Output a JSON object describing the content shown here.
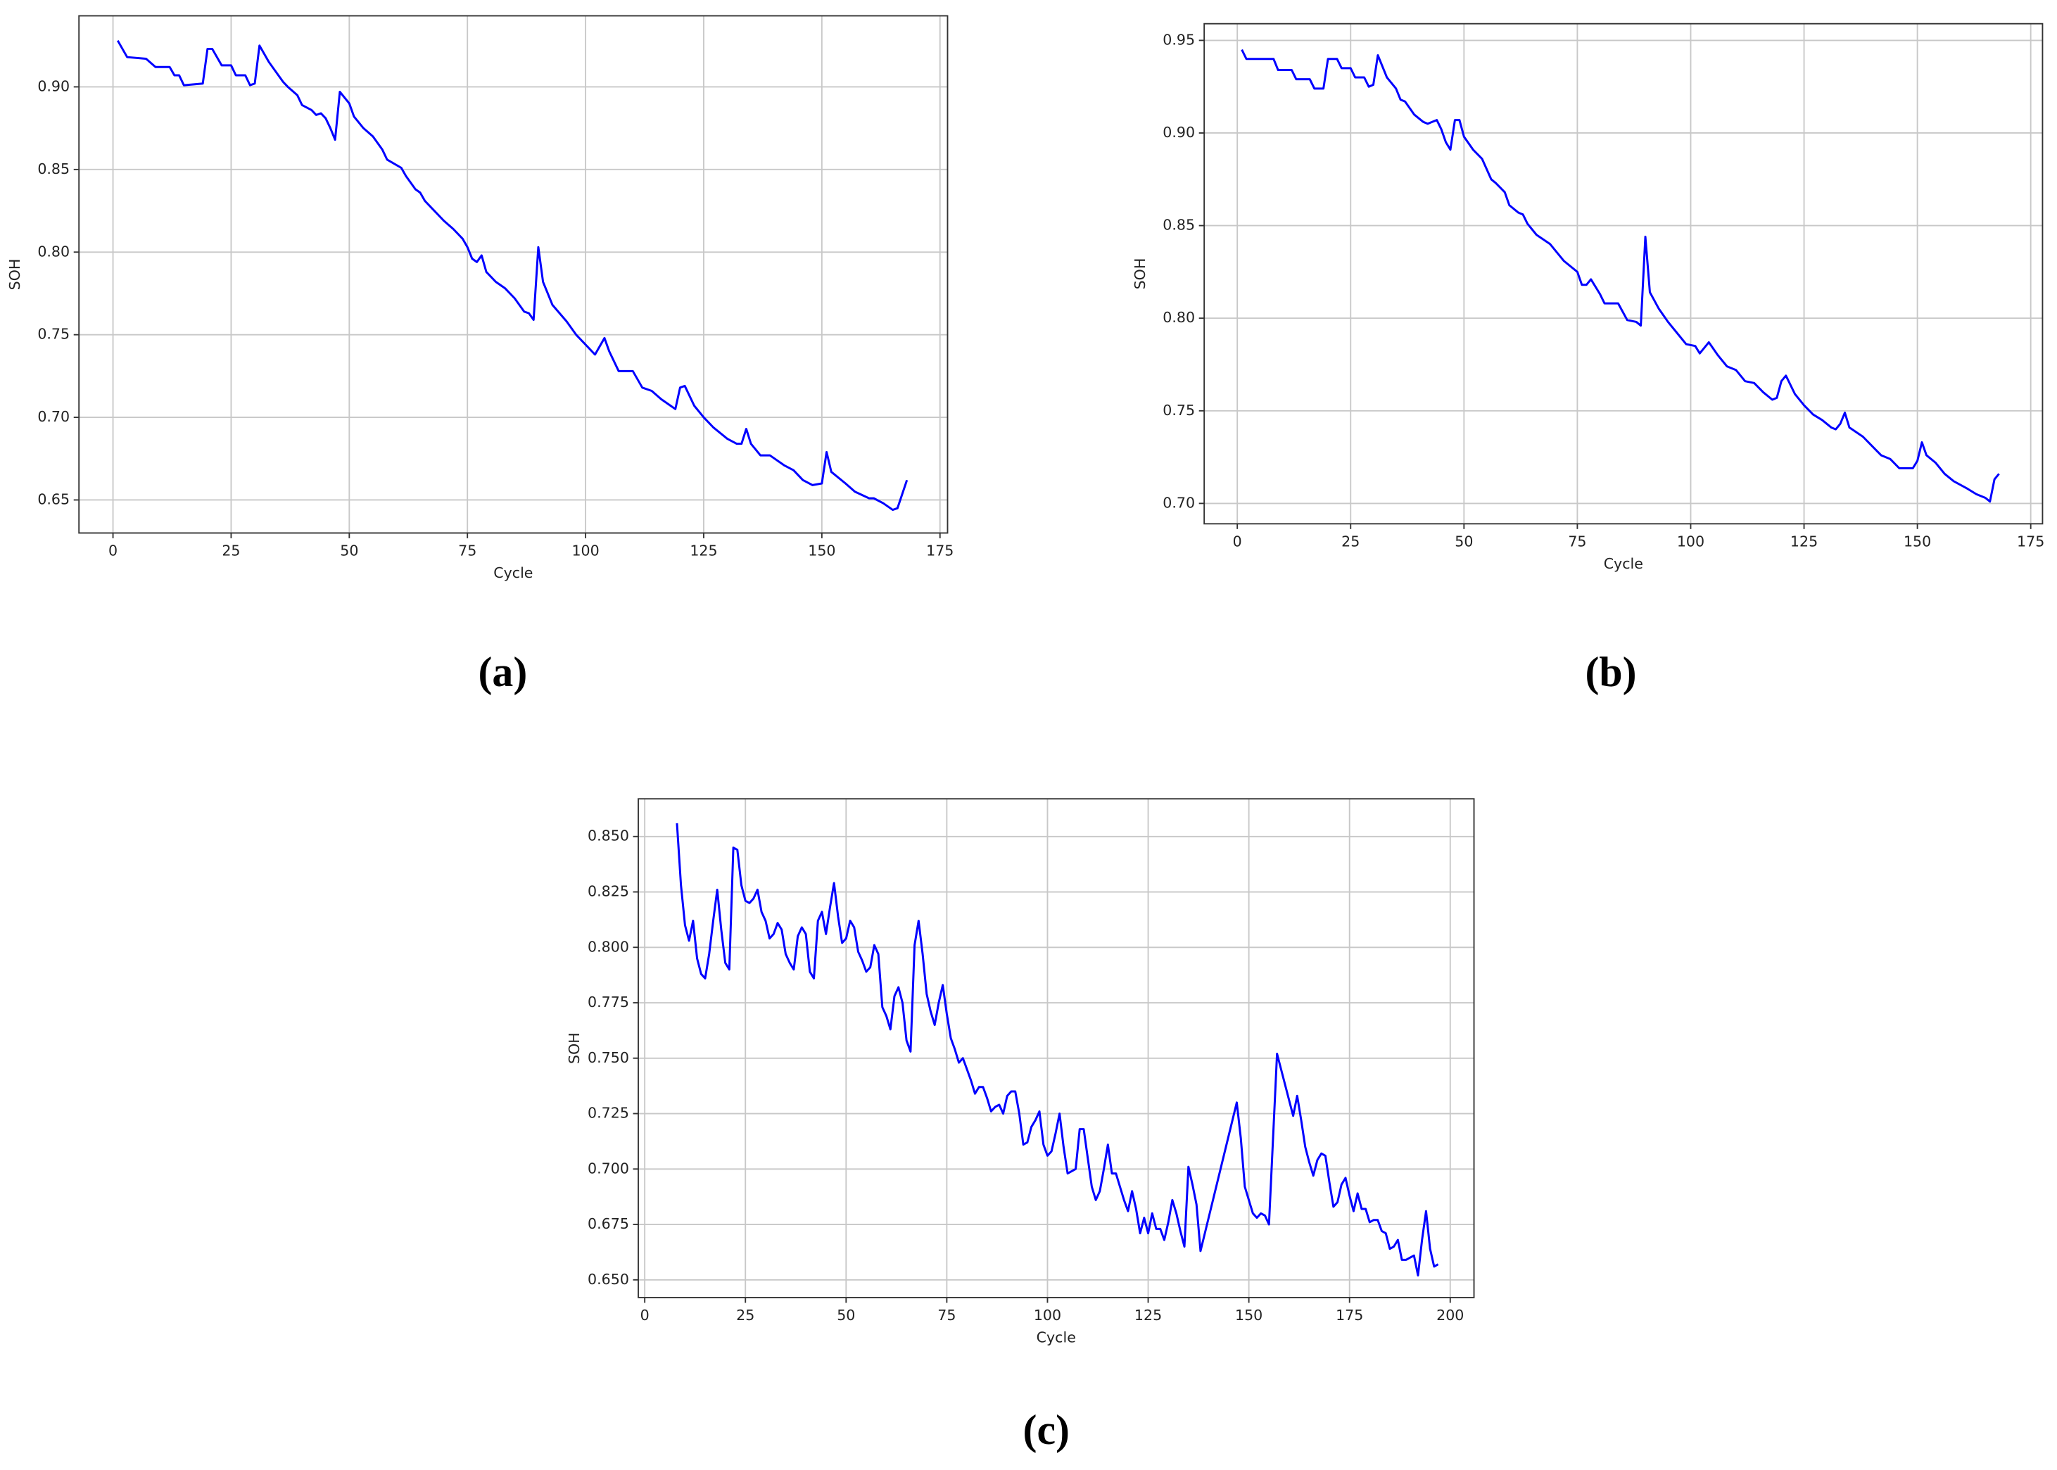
{
  "chart_data": [
    {
      "type": "line",
      "label": "(a)",
      "x_label": "Cycle",
      "y_label": "SOH",
      "grid": true,
      "color": "#0000ff",
      "xlim": [
        -7.2,
        176.6
      ],
      "ylim": [
        0.63,
        0.943
      ],
      "xticks": [
        0,
        25,
        50,
        75,
        100,
        125,
        150,
        175
      ],
      "yticks": [
        {
          "value": 0.65,
          "label": "0.65"
        },
        {
          "value": 0.7,
          "label": "0.70"
        },
        {
          "value": 0.75,
          "label": "0.75"
        },
        {
          "value": 0.8,
          "label": "0.80"
        },
        {
          "value": 0.85,
          "label": "0.85"
        },
        {
          "value": 0.9,
          "label": "0.90"
        }
      ],
      "x": [
        1,
        3,
        7,
        9,
        12,
        13,
        14,
        15,
        19,
        20,
        21,
        23,
        25,
        26,
        28,
        29,
        30,
        31,
        33,
        35,
        36,
        37,
        39,
        40,
        42,
        43,
        44,
        45,
        46,
        47,
        48,
        50,
        51,
        53,
        55,
        57,
        58,
        61,
        62,
        64,
        65,
        66,
        68,
        70,
        72,
        74,
        75,
        76,
        77,
        78,
        79,
        81,
        83,
        85,
        87,
        88,
        89,
        90,
        91,
        93,
        96,
        98,
        100,
        102,
        104,
        105,
        107,
        110,
        112,
        114,
        116,
        118,
        119,
        120,
        121,
        123,
        125,
        127,
        130,
        132,
        133,
        134,
        135,
        137,
        139,
        142,
        144,
        146,
        148,
        150,
        151,
        152,
        155,
        157,
        160,
        161,
        163,
        165,
        166,
        168
      ],
      "values": [
        0.928,
        0.918,
        0.917,
        0.912,
        0.912,
        0.907,
        0.907,
        0.901,
        0.902,
        0.923,
        0.923,
        0.913,
        0.913,
        0.907,
        0.907,
        0.901,
        0.902,
        0.925,
        0.915,
        0.907,
        0.903,
        0.9,
        0.895,
        0.889,
        0.886,
        0.883,
        0.884,
        0.881,
        0.875,
        0.868,
        0.897,
        0.89,
        0.882,
        0.875,
        0.87,
        0.862,
        0.856,
        0.851,
        0.846,
        0.838,
        0.836,
        0.831,
        0.825,
        0.819,
        0.814,
        0.808,
        0.803,
        0.796,
        0.794,
        0.798,
        0.788,
        0.782,
        0.778,
        0.772,
        0.764,
        0.763,
        0.759,
        0.803,
        0.782,
        0.768,
        0.758,
        0.75,
        0.744,
        0.738,
        0.748,
        0.74,
        0.728,
        0.728,
        0.718,
        0.716,
        0.711,
        0.707,
        0.705,
        0.718,
        0.719,
        0.707,
        0.7,
        0.694,
        0.687,
        0.684,
        0.684,
        0.693,
        0.684,
        0.677,
        0.677,
        0.671,
        0.668,
        0.662,
        0.659,
        0.66,
        0.679,
        0.667,
        0.66,
        0.655,
        0.651,
        0.651,
        0.648,
        0.644,
        0.645,
        0.662
      ]
    },
    {
      "type": "line",
      "label": "(b)",
      "x_label": "Cycle",
      "y_label": "SOH",
      "grid": true,
      "color": "#0000ff",
      "xlim": [
        -7.3,
        177.6
      ],
      "ylim": [
        0.689,
        0.959
      ],
      "xticks": [
        0,
        25,
        50,
        75,
        100,
        125,
        150,
        175
      ],
      "yticks": [
        {
          "value": 0.7,
          "label": "0.70"
        },
        {
          "value": 0.75,
          "label": "0.75"
        },
        {
          "value": 0.8,
          "label": "0.80"
        },
        {
          "value": 0.85,
          "label": "0.85"
        },
        {
          "value": 0.9,
          "label": "0.90"
        },
        {
          "value": 0.95,
          "label": "0.95"
        }
      ],
      "x": [
        1,
        2,
        8,
        9,
        12,
        13,
        16,
        17,
        19,
        20,
        22,
        23,
        25,
        26,
        28,
        29,
        30,
        31,
        33,
        35,
        36,
        37,
        39,
        41,
        42,
        44,
        45,
        46,
        47,
        48,
        49,
        50,
        52,
        54,
        56,
        57,
        59,
        60,
        62,
        63,
        64,
        66,
        69,
        72,
        75,
        76,
        77,
        78,
        80,
        81,
        84,
        86,
        88,
        89,
        90,
        91,
        93,
        95,
        97,
        99,
        101,
        102,
        104,
        106,
        108,
        110,
        112,
        114,
        116,
        118,
        119,
        120,
        121,
        123,
        125,
        127,
        129,
        131,
        132,
        133,
        134,
        135,
        138,
        140,
        142,
        144,
        146,
        149,
        150,
        151,
        152,
        154,
        156,
        158,
        161,
        163,
        165,
        166,
        167,
        168
      ],
      "values": [
        0.945,
        0.94,
        0.94,
        0.934,
        0.934,
        0.929,
        0.929,
        0.924,
        0.924,
        0.94,
        0.94,
        0.935,
        0.935,
        0.93,
        0.93,
        0.925,
        0.926,
        0.942,
        0.93,
        0.924,
        0.918,
        0.917,
        0.91,
        0.906,
        0.905,
        0.907,
        0.902,
        0.895,
        0.891,
        0.907,
        0.907,
        0.898,
        0.891,
        0.886,
        0.875,
        0.873,
        0.868,
        0.861,
        0.857,
        0.856,
        0.851,
        0.845,
        0.84,
        0.831,
        0.825,
        0.818,
        0.818,
        0.821,
        0.813,
        0.808,
        0.808,
        0.799,
        0.798,
        0.796,
        0.844,
        0.814,
        0.805,
        0.798,
        0.792,
        0.786,
        0.785,
        0.781,
        0.787,
        0.78,
        0.774,
        0.772,
        0.766,
        0.765,
        0.76,
        0.756,
        0.757,
        0.766,
        0.769,
        0.759,
        0.753,
        0.748,
        0.745,
        0.741,
        0.74,
        0.743,
        0.749,
        0.741,
        0.736,
        0.731,
        0.726,
        0.724,
        0.719,
        0.719,
        0.723,
        0.733,
        0.726,
        0.722,
        0.716,
        0.712,
        0.708,
        0.705,
        0.703,
        0.701,
        0.713,
        0.716
      ]
    },
    {
      "type": "line",
      "label": "(c)",
      "x_label": "Cycle",
      "y_label": "SOH",
      "grid": true,
      "color": "#0000ff",
      "xlim": [
        -1.6,
        205.9
      ],
      "ylim": [
        0.642,
        0.867
      ],
      "xticks": [
        0,
        25,
        50,
        75,
        100,
        125,
        150,
        175,
        200
      ],
      "yticks": [
        {
          "value": 0.65,
          "label": "0.650"
        },
        {
          "value": 0.675,
          "label": "0.675"
        },
        {
          "value": 0.7,
          "label": "0.700"
        },
        {
          "value": 0.725,
          "label": "0.725"
        },
        {
          "value": 0.75,
          "label": "0.750"
        },
        {
          "value": 0.775,
          "label": "0.775"
        },
        {
          "value": 0.8,
          "label": "0.800"
        },
        {
          "value": 0.825,
          "label": "0.825"
        },
        {
          "value": 0.85,
          "label": "0.850"
        }
      ],
      "x": [
        8,
        9,
        10,
        11,
        12,
        13,
        14,
        15,
        16,
        17,
        18,
        19,
        20,
        21,
        22,
        23,
        24,
        25,
        26,
        27,
        28,
        29,
        30,
        31,
        32,
        33,
        34,
        35,
        36,
        37,
        38,
        39,
        40,
        41,
        42,
        43,
        44,
        45,
        46,
        47,
        48,
        49,
        50,
        51,
        52,
        53,
        54,
        55,
        56,
        57,
        58,
        59,
        60,
        61,
        62,
        63,
        64,
        65,
        66,
        67,
        68,
        69,
        70,
        71,
        72,
        73,
        74,
        75,
        76,
        77,
        78,
        79,
        80,
        81,
        82,
        83,
        84,
        85,
        86,
        87,
        88,
        89,
        90,
        91,
        92,
        93,
        94,
        95,
        96,
        97,
        98,
        99,
        100,
        101,
        102,
        103,
        104,
        105,
        106,
        107,
        108,
        109,
        110,
        111,
        112,
        113,
        114,
        115,
        116,
        117,
        118,
        119,
        120,
        121,
        122,
        123,
        124,
        125,
        126,
        127,
        128,
        129,
        130,
        131,
        132,
        133,
        134,
        135,
        136,
        137,
        138,
        147,
        148,
        149,
        150,
        151,
        152,
        153,
        154,
        155,
        157,
        158,
        159,
        160,
        161,
        162,
        163,
        164,
        165,
        166,
        167,
        168,
        169,
        170,
        171,
        172,
        173,
        174,
        175,
        176,
        177,
        178,
        179,
        180,
        181,
        182,
        183,
        184,
        185,
        186,
        187,
        188,
        189,
        190,
        191,
        192,
        193,
        194,
        195,
        196,
        197
      ],
      "values": [
        0.856,
        0.828,
        0.81,
        0.803,
        0.812,
        0.795,
        0.788,
        0.786,
        0.797,
        0.812,
        0.826,
        0.808,
        0.793,
        0.79,
        0.845,
        0.844,
        0.828,
        0.821,
        0.82,
        0.822,
        0.826,
        0.816,
        0.812,
        0.804,
        0.806,
        0.811,
        0.808,
        0.797,
        0.793,
        0.79,
        0.805,
        0.809,
        0.806,
        0.789,
        0.786,
        0.812,
        0.816,
        0.806,
        0.818,
        0.829,
        0.814,
        0.802,
        0.804,
        0.812,
        0.809,
        0.798,
        0.794,
        0.789,
        0.791,
        0.801,
        0.797,
        0.773,
        0.769,
        0.763,
        0.778,
        0.782,
        0.775,
        0.758,
        0.753,
        0.801,
        0.812,
        0.797,
        0.779,
        0.771,
        0.765,
        0.775,
        0.783,
        0.77,
        0.759,
        0.754,
        0.748,
        0.75,
        0.745,
        0.74,
        0.734,
        0.737,
        0.737,
        0.732,
        0.726,
        0.728,
        0.729,
        0.725,
        0.733,
        0.735,
        0.735,
        0.725,
        0.711,
        0.712,
        0.719,
        0.722,
        0.726,
        0.711,
        0.706,
        0.708,
        0.716,
        0.725,
        0.71,
        0.698,
        0.699,
        0.7,
        0.718,
        0.718,
        0.705,
        0.692,
        0.686,
        0.69,
        0.7,
        0.711,
        0.698,
        0.698,
        0.692,
        0.686,
        0.681,
        0.69,
        0.682,
        0.671,
        0.678,
        0.671,
        0.68,
        0.673,
        0.673,
        0.668,
        0.676,
        0.686,
        0.68,
        0.672,
        0.665,
        0.701,
        0.693,
        0.684,
        0.663,
        0.73,
        0.714,
        0.692,
        0.686,
        0.68,
        0.678,
        0.68,
        0.679,
        0.675,
        0.752,
        0.745,
        0.738,
        0.731,
        0.724,
        0.733,
        0.722,
        0.71,
        0.703,
        0.697,
        0.704,
        0.707,
        0.706,
        0.694,
        0.683,
        0.685,
        0.693,
        0.696,
        0.688,
        0.681,
        0.689,
        0.682,
        0.682,
        0.676,
        0.677,
        0.677,
        0.672,
        0.671,
        0.664,
        0.665,
        0.668,
        0.659,
        0.659,
        0.66,
        0.661,
        0.652,
        0.668,
        0.681,
        0.664,
        0.656,
        0.657
      ]
    }
  ]
}
